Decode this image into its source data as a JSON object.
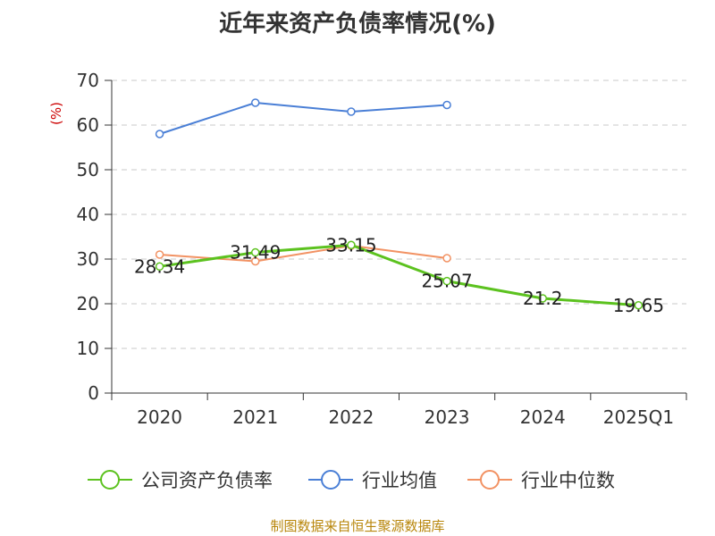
{
  "title": "近年来资产负债率情况(%)",
  "source": "制图数据来自恒生聚源数据库",
  "chart_data": {
    "type": "line",
    "title": "近年来资产负债率情况(%)",
    "ylabel": "(%)",
    "xlabel": "",
    "ylim": [
      0,
      70
    ],
    "yticks": [
      0,
      10,
      20,
      30,
      40,
      50,
      60,
      70
    ],
    "grid": true,
    "legend": "bottom",
    "categories": [
      "2020",
      "2021",
      "2022",
      "2023",
      "2024",
      "2025Q1"
    ],
    "series": [
      {
        "name": "公司资产负债率",
        "color": "#5cc21f",
        "values": [
          28.34,
          31.49,
          33.15,
          25.07,
          21.2,
          19.65
        ],
        "labels": [
          "28.34",
          "31.49",
          "33.15",
          "25.07",
          "21.2",
          "19.65"
        ],
        "width": 3
      },
      {
        "name": "行业均值",
        "color": "#4a7fd6",
        "values": [
          58,
          65,
          63,
          64.5,
          null,
          null
        ],
        "labels": [],
        "width": 2
      },
      {
        "name": "行业中位数",
        "color": "#f29263",
        "values": [
          31,
          29.5,
          33,
          30.2,
          null,
          null
        ],
        "labels": [],
        "width": 2
      }
    ]
  }
}
